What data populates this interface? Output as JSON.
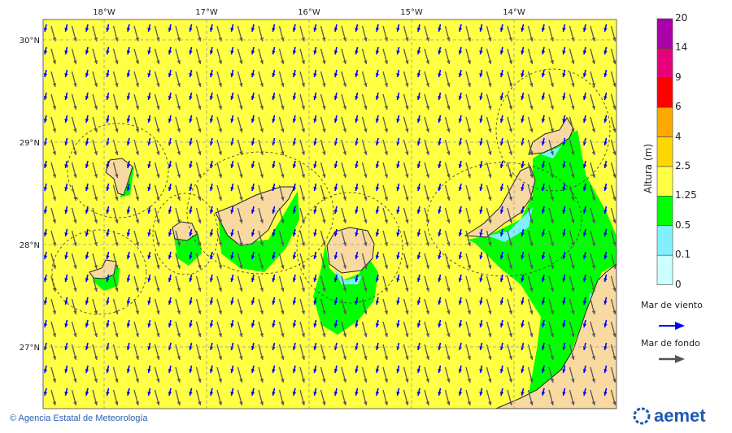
{
  "map": {
    "lon_labels": [
      "18°W",
      "17°W",
      "16°W",
      "15°W",
      "14°W"
    ],
    "lat_labels": [
      "30°N",
      "29°N",
      "28°N",
      "27°N"
    ],
    "background_color": "#ffff44",
    "land_color": "#f8d9a0",
    "islands": [
      "La Palma",
      "El Hierro",
      "La Gomera",
      "Tenerife",
      "Gran Canaria",
      "Fuerteventura",
      "Lanzarote"
    ]
  },
  "legend": {
    "title": "Altura (m)",
    "levels": [
      "20",
      "14",
      "9",
      "6",
      "4",
      "2.5",
      "1.25",
      "0.5",
      "0.1",
      "0"
    ],
    "colors": [
      "#aa00aa",
      "#e6007a",
      "#ff0000",
      "#ffaa00",
      "#ffd700",
      "#ffff44",
      "#00ff00",
      "#80f0ff",
      "#ccffff"
    ],
    "wind_sea_label": "Mar de viento",
    "wind_sea_color": "#0000ff",
    "swell_label": "Mar de fondo",
    "swell_color": "#555555"
  },
  "footer": {
    "credit": "© Agencia Estatal de Meteorología",
    "logo": "aemet"
  }
}
